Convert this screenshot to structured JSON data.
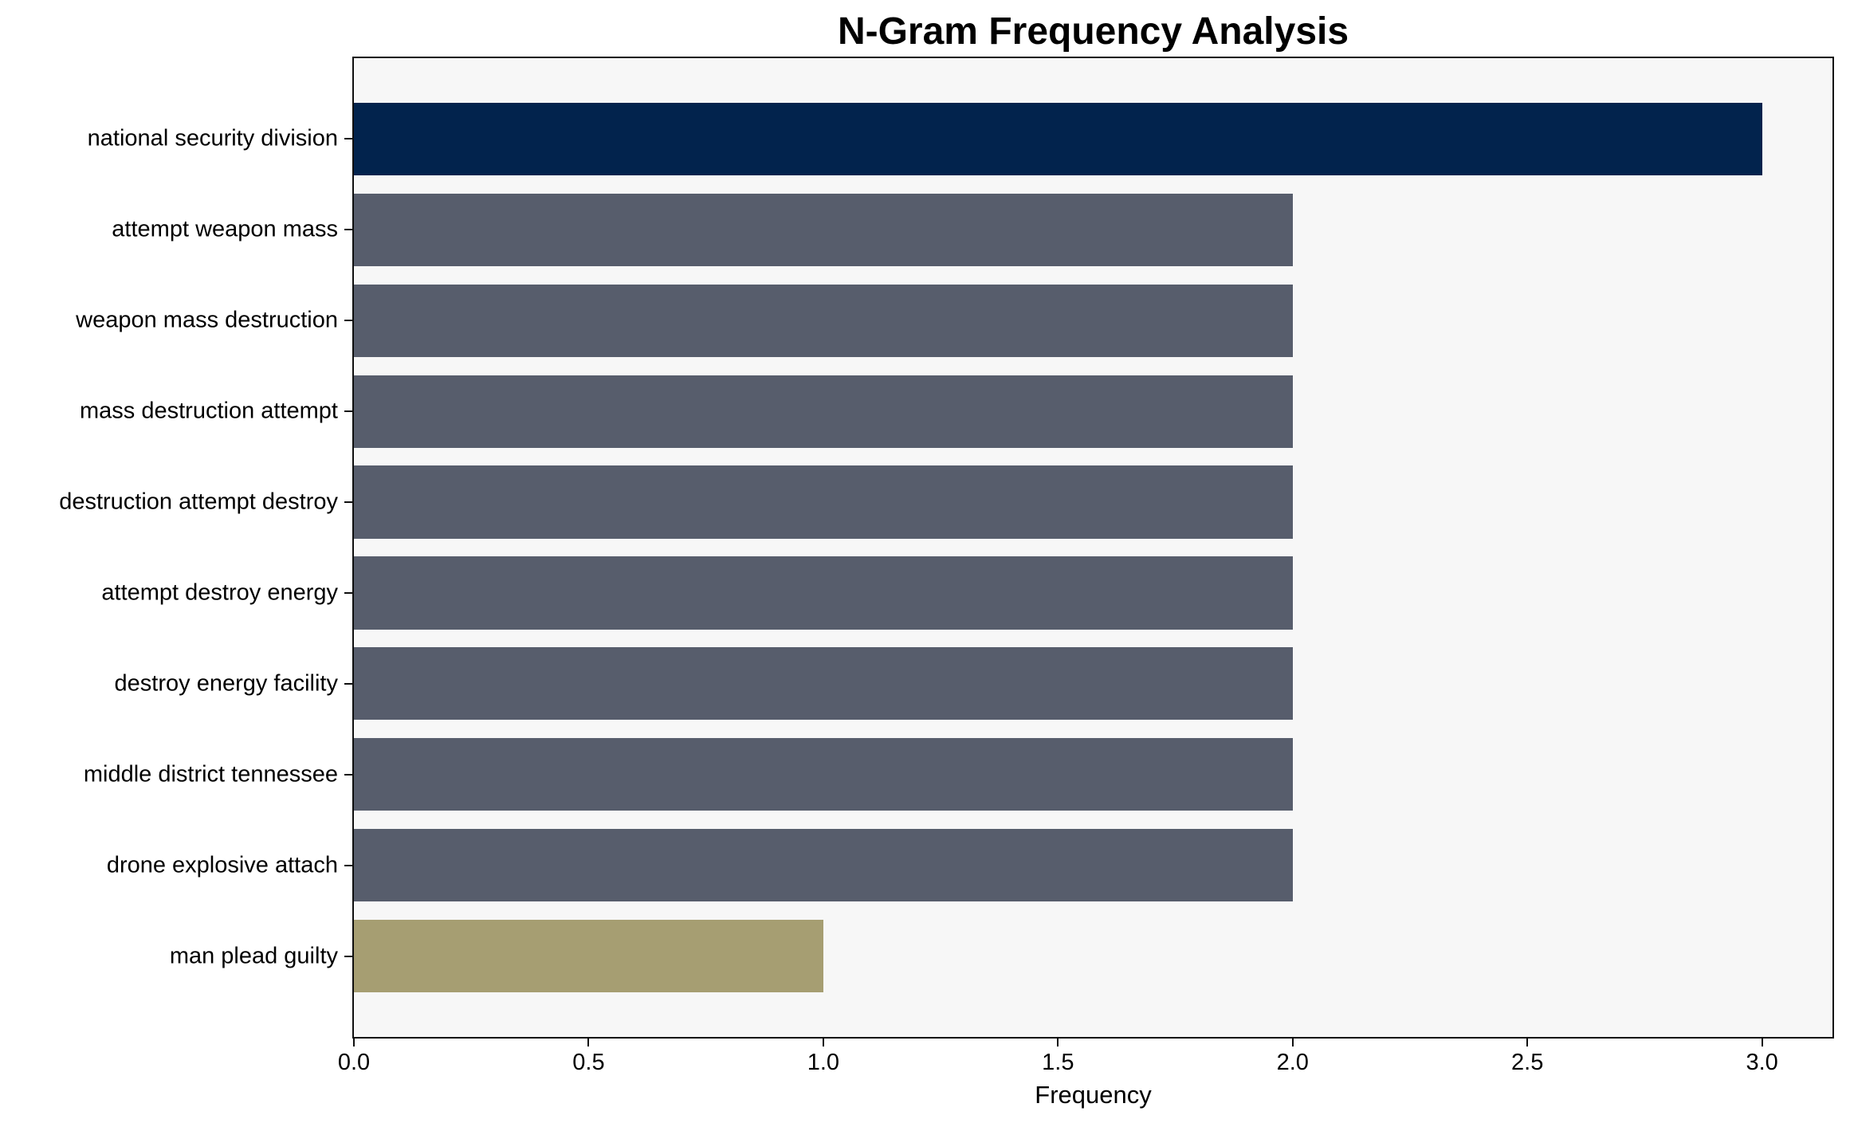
{
  "chart_data": {
    "type": "bar",
    "orientation": "horizontal",
    "title": "N-Gram Frequency Analysis",
    "xlabel": "Frequency",
    "ylabel": "",
    "categories": [
      "national security division",
      "attempt weapon mass",
      "weapon mass destruction",
      "mass destruction attempt",
      "destruction attempt destroy",
      "attempt destroy energy",
      "destroy energy facility",
      "middle district tennessee",
      "drone explosive attach",
      "man plead guilty"
    ],
    "values": [
      3,
      2,
      2,
      2,
      2,
      2,
      2,
      2,
      2,
      1
    ],
    "bar_colors": [
      "#02234d",
      "#575d6c",
      "#575d6c",
      "#575d6c",
      "#575d6c",
      "#575d6c",
      "#575d6c",
      "#575d6c",
      "#575d6c",
      "#a69e72"
    ],
    "x_ticks": [
      {
        "value": 0,
        "label": "0.0"
      },
      {
        "value": 0.5,
        "label": "0.5"
      },
      {
        "value": 1,
        "label": "1.0"
      },
      {
        "value": 1.5,
        "label": "1.5"
      },
      {
        "value": 2,
        "label": "2.0"
      },
      {
        "value": 2.5,
        "label": "2.5"
      },
      {
        "value": 3,
        "label": "3.0"
      }
    ],
    "xlim": [
      0,
      3.15
    ],
    "grid": false,
    "legend": null,
    "plot_background": "#f7f7f7",
    "figure_background": "#ffffff"
  }
}
